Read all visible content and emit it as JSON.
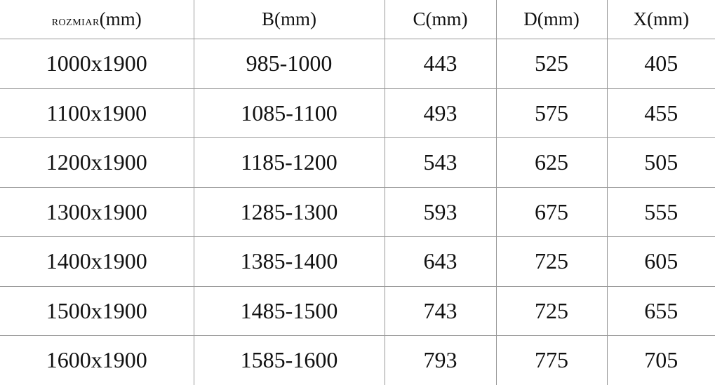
{
  "table": {
    "headers": [
      {
        "prefix": "ROZMIAR",
        "unit": "(mm)"
      },
      {
        "prefix": "B",
        "unit": "(mm)"
      },
      {
        "prefix": "C",
        "unit": "(mm)"
      },
      {
        "prefix": "D",
        "unit": "(mm)"
      },
      {
        "prefix": "X",
        "unit": "(mm)"
      }
    ],
    "rows": [
      [
        "1000x1900",
        "985-1000",
        "443",
        "525",
        "405"
      ],
      [
        "1100x1900",
        "1085-1100",
        "493",
        "575",
        "455"
      ],
      [
        "1200x1900",
        "1185-1200",
        "543",
        "625",
        "505"
      ],
      [
        "1300x1900",
        "1285-1300",
        "593",
        "675",
        "555"
      ],
      [
        "1400x1900",
        "1385-1400",
        "643",
        "725",
        "605"
      ],
      [
        "1500x1900",
        "1485-1500",
        "743",
        "725",
        "655"
      ],
      [
        "1600x1900",
        "1585-1600",
        "793",
        "775",
        "705"
      ]
    ]
  }
}
